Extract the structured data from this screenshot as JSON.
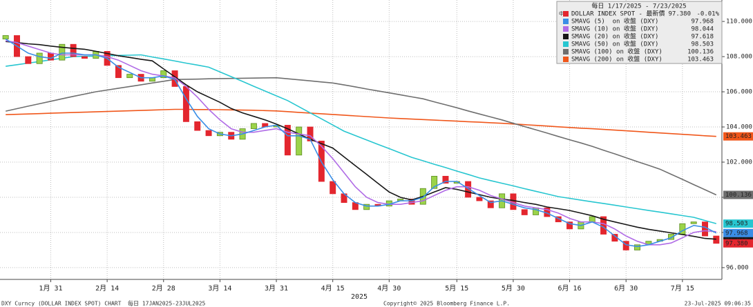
{
  "chart_data": {
    "type": "candlestick",
    "title": "每日 1/17/2025 - 7/23/2025",
    "legend_tag": "中",
    "x_label": "2025",
    "footer_left": "DXY Curncy (DOLLAR INDEX SPOT) CHART  每日 17JAN2025-23JUL2025",
    "footer_center": "Copyright© 2025 Bloomberg Finance L.P.",
    "footer_right": "23-Jul-2025 09:06:35",
    "categories": [
      null,
      null,
      null,
      null,
      "1月 31",
      null,
      null,
      null,
      null,
      "2月 14",
      null,
      null,
      null,
      null,
      "2月 28",
      null,
      null,
      null,
      null,
      "3月 14",
      null,
      null,
      null,
      null,
      "3月 31",
      null,
      null,
      null,
      null,
      "4月 15",
      null,
      null,
      null,
      null,
      "4月 30",
      null,
      null,
      null,
      null,
      null,
      "5月 15",
      null,
      null,
      null,
      null,
      "5月 30",
      null,
      null,
      null,
      null,
      "6月 16",
      null,
      null,
      null,
      null,
      "6月 30",
      null,
      null,
      null,
      null,
      "7月 15",
      null,
      null,
      null
    ],
    "price": {
      "name": "DOLLAR INDEX SPOT - 最新價",
      "label": "97.380",
      "change": "-0.01%",
      "color": "#e3262e"
    },
    "up_color": "#9bd34a",
    "up_edge": "#5d8c22",
    "down_color": "#e3262e",
    "open": [
      109.0,
      109.2,
      108.0,
      107.6,
      108.2,
      107.8,
      108.7,
      108.0,
      107.9,
      108.3,
      107.5,
      106.8,
      107.0,
      106.6,
      106.8,
      107.2,
      106.3,
      104.3,
      103.8,
      103.5,
      103.7,
      103.3,
      103.9,
      104.2,
      104.0,
      104.1,
      102.4,
      104.0,
      103.2,
      100.9,
      100.2,
      99.7,
      99.3,
      99.6,
      99.5,
      99.8,
      99.9,
      99.6,
      100.5,
      101.2,
      100.8,
      100.9,
      100.0,
      99.8,
      99.4,
      100.2,
      99.3,
      99.0,
      99.4,
      98.9,
      98.6,
      98.2,
      98.6,
      98.9,
      97.9,
      97.5,
      97.0,
      97.3,
      97.5,
      97.6,
      97.9,
      98.5,
      98.6,
      97.8
    ],
    "close": [
      109.2,
      108.0,
      107.6,
      108.2,
      107.8,
      108.7,
      108.0,
      107.9,
      108.3,
      107.5,
      106.8,
      107.0,
      106.6,
      106.8,
      107.2,
      106.3,
      104.3,
      103.8,
      103.5,
      103.7,
      103.3,
      103.9,
      104.2,
      104.0,
      104.1,
      102.4,
      104.0,
      103.2,
      100.9,
      100.2,
      99.7,
      99.3,
      99.6,
      99.5,
      99.8,
      99.9,
      99.6,
      100.5,
      101.2,
      100.8,
      100.9,
      100.0,
      99.8,
      99.4,
      100.2,
      99.3,
      99.0,
      99.4,
      98.9,
      98.6,
      98.2,
      98.6,
      98.9,
      97.9,
      97.5,
      97.0,
      97.3,
      97.5,
      97.6,
      97.9,
      98.5,
      98.6,
      97.8,
      97.38
    ],
    "series": [
      {
        "name": "SMAVG (5)  on 收盤 (DXY)",
        "color": "#3a8ee6",
        "tag": true,
        "values": [
          109.0,
          108.6,
          108.2,
          108.0,
          107.9,
          108.2,
          108.2,
          108.1,
          108.1,
          107.9,
          107.4,
          107.1,
          106.8,
          106.8,
          106.9,
          106.7,
          105.6,
          104.6,
          103.9,
          103.6,
          103.5,
          103.6,
          103.8,
          104.0,
          104.1,
          103.5,
          103.5,
          103.3,
          102.0,
          101.0,
          100.2,
          99.7,
          99.5,
          99.5,
          99.6,
          99.8,
          99.8,
          100.0,
          100.6,
          100.9,
          100.9,
          100.5,
          100.1,
          99.7,
          99.8,
          99.6,
          99.4,
          99.3,
          99.1,
          98.8,
          98.5,
          98.4,
          98.6,
          98.3,
          97.8,
          97.3,
          97.2,
          97.3,
          97.5,
          97.7,
          98.1,
          98.4,
          98.3,
          97.968
        ]
      },
      {
        "name": "SMAVG (10) on 收盤 (DXY)",
        "color": "#b06be6",
        "tag": false,
        "values": [
          108.9,
          108.8,
          108.6,
          108.4,
          108.2,
          108.1,
          108.1,
          108.1,
          108.1,
          108.0,
          107.8,
          107.5,
          107.2,
          107.0,
          106.9,
          106.8,
          106.3,
          105.7,
          105.0,
          104.4,
          103.9,
          103.7,
          103.7,
          103.8,
          103.9,
          103.7,
          103.6,
          103.5,
          102.9,
          102.2,
          101.4,
          100.6,
          100.0,
          99.7,
          99.6,
          99.6,
          99.7,
          99.8,
          100.1,
          100.4,
          100.6,
          100.6,
          100.4,
          100.1,
          99.9,
          99.7,
          99.5,
          99.4,
          99.3,
          99.1,
          98.8,
          98.6,
          98.6,
          98.5,
          98.2,
          97.8,
          97.5,
          97.3,
          97.3,
          97.4,
          97.7,
          98.0,
          98.1,
          98.044
        ]
      },
      {
        "name": "SMAVG (20) on 收盤 (DXY)",
        "color": "#161616",
        "tag": true,
        "values": [
          108.86,
          108.8,
          108.73,
          108.68,
          108.6,
          108.53,
          108.47,
          108.42,
          108.3,
          108.18,
          108.05,
          107.95,
          107.85,
          107.76,
          107.3,
          106.85,
          106.4,
          106.0,
          105.7,
          105.4,
          105.05,
          104.8,
          104.6,
          104.4,
          104.16,
          103.9,
          103.6,
          103.3,
          103.05,
          102.8,
          102.3,
          101.8,
          101.3,
          100.8,
          100.3,
          100.0,
          99.85,
          100.05,
          100.3,
          100.55,
          100.45,
          100.3,
          100.15,
          100.0,
          99.9,
          99.82,
          99.7,
          99.6,
          99.45,
          99.35,
          99.25,
          99.1,
          98.95,
          98.75,
          98.6,
          98.45,
          98.3,
          98.18,
          98.08,
          97.98,
          97.88,
          97.78,
          97.66,
          97.618
        ]
      },
      {
        "name": "SMAVG (50) on 收盤 (DXY)",
        "color": "#27c6d0",
        "tag": true,
        "values": [
          107.45,
          107.54,
          107.63,
          107.72,
          107.82,
          107.91,
          108.0,
          108.02,
          108.03,
          108.05,
          108.07,
          108.08,
          108.1,
          107.98,
          107.87,
          107.75,
          107.63,
          107.52,
          107.4,
          107.13,
          106.86,
          106.59,
          106.31,
          106.04,
          105.77,
          105.5,
          105.15,
          104.8,
          104.46,
          104.11,
          103.76,
          103.51,
          103.26,
          103.01,
          102.77,
          102.52,
          102.27,
          102.08,
          101.88,
          101.69,
          101.49,
          101.3,
          101.1,
          100.95,
          100.8,
          100.65,
          100.49,
          100.34,
          100.19,
          100.04,
          99.94,
          99.84,
          99.74,
          99.65,
          99.55,
          99.45,
          99.35,
          99.25,
          99.16,
          99.06,
          98.96,
          98.86,
          98.68,
          98.503
        ]
      },
      {
        "name": "SMAVG (100) on 收盤 (DXY)",
        "color": "#6e6e6e",
        "tag": true,
        "values": [
          104.9,
          105.04,
          105.18,
          105.32,
          105.46,
          105.6,
          105.74,
          105.87,
          106.0,
          106.1,
          106.2,
          106.3,
          106.4,
          106.5,
          106.6,
          106.7,
          106.71,
          106.72,
          106.74,
          106.75,
          106.76,
          106.77,
          106.78,
          106.79,
          106.8,
          106.74,
          106.68,
          106.62,
          106.56,
          106.5,
          106.39,
          106.28,
          106.16,
          106.05,
          105.94,
          105.83,
          105.71,
          105.6,
          105.43,
          105.26,
          105.09,
          104.91,
          104.74,
          104.57,
          104.4,
          104.21,
          104.02,
          103.84,
          103.65,
          103.46,
          103.27,
          103.09,
          102.9,
          102.68,
          102.47,
          102.25,
          102.03,
          101.82,
          101.6,
          101.31,
          101.02,
          100.72,
          100.43,
          100.136
        ]
      },
      {
        "name": "SMAVG (200) on 收盤 (DXY)",
        "color": "#f0561a",
        "tag": true,
        "values": [
          104.7,
          104.72,
          104.74,
          104.76,
          104.78,
          104.8,
          104.82,
          104.84,
          104.86,
          104.88,
          104.9,
          104.92,
          104.94,
          104.96,
          104.98,
          105.0,
          105.0,
          104.99,
          104.99,
          104.98,
          104.97,
          104.96,
          104.95,
          104.93,
          104.91,
          104.87,
          104.83,
          104.79,
          104.75,
          104.71,
          104.67,
          104.63,
          104.59,
          104.55,
          104.51,
          104.48,
          104.45,
          104.42,
          104.39,
          104.36,
          104.33,
          104.3,
          104.27,
          104.24,
          104.21,
          104.17,
          104.13,
          104.09,
          104.05,
          104.01,
          103.97,
          103.93,
          103.9,
          103.86,
          103.82,
          103.78,
          103.74,
          103.7,
          103.66,
          103.62,
          103.58,
          103.54,
          103.5,
          103.463
        ]
      }
    ],
    "ylim": [
      95.33,
      111.22
    ],
    "yticks": [
      {
        "value": 96,
        "label": "96.000"
      },
      {
        "value": 98,
        "label": "98.000"
      },
      {
        "value": 100,
        "label": "100.000"
      },
      {
        "value": 102,
        "label": "102.000"
      },
      {
        "value": 104,
        "label": "104.000"
      },
      {
        "value": 106,
        "label": "106.000"
      },
      {
        "value": 108,
        "label": "108.000"
      },
      {
        "value": 110,
        "label": "110.000"
      }
    ],
    "grid": true
  }
}
